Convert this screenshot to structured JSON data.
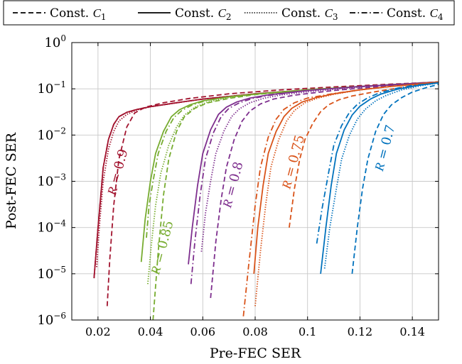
{
  "chart_data": {
    "type": "line",
    "xlabel": "Pre-FEC SER",
    "ylabel": "Post-FEC SER",
    "xlim": [
      0.01,
      0.15
    ],
    "ylim": [
      1e-06,
      1
    ],
    "yscale": "log",
    "grid": true,
    "legend_position": "top",
    "x_ticks": [
      {
        "v": 0.02,
        "label": "0.02"
      },
      {
        "v": 0.04,
        "label": "0.04"
      },
      {
        "v": 0.06,
        "label": "0.06"
      },
      {
        "v": 0.08,
        "label": "0.08"
      },
      {
        "v": 0.1,
        "label": "0.1"
      },
      {
        "v": 0.12,
        "label": "0.12"
      },
      {
        "v": 0.14,
        "label": "0.14"
      }
    ],
    "y_ticks": [
      {
        "v": 1,
        "exp": "0"
      },
      {
        "v": 0.1,
        "exp": "−1"
      },
      {
        "v": 0.01,
        "exp": "−2"
      },
      {
        "v": 0.001,
        "exp": "−3"
      },
      {
        "v": 0.0001,
        "exp": "−4"
      },
      {
        "v": 1e-05,
        "exp": "−5"
      },
      {
        "v": 1e-06,
        "exp": "−6"
      }
    ],
    "y_tick_base": "10",
    "legend": [
      {
        "key": "C1",
        "prefix": "Const. ",
        "sym": "C",
        "sub": "1",
        "dash": "dashed"
      },
      {
        "key": "C2",
        "prefix": "Const. ",
        "sym": "C",
        "sub": "2",
        "dash": "solid"
      },
      {
        "key": "C3",
        "prefix": "Const. ",
        "sym": "C",
        "sub": "3",
        "dash": "dotted"
      },
      {
        "key": "C4",
        "prefix": "Const. ",
        "sym": "C",
        "sub": "4",
        "dash": "dashdot"
      }
    ],
    "groups": [
      {
        "rate": "0.9",
        "color": "#a2142f",
        "label_x": 0.029,
        "label_y": 0.0015,
        "series": {
          "C1": {
            "x": [
              0.0235,
              0.0245,
              0.026,
              0.028,
              0.031,
              0.034,
              0.038,
              0.045,
              0.055,
              0.07,
              0.09,
              0.11,
              0.13,
              0.15
            ],
            "y": [
              2e-06,
              2e-05,
              0.0003,
              0.003,
              0.015,
              0.03,
              0.04,
              0.05,
              0.062,
              0.078,
              0.095,
              0.11,
              0.125,
              0.14
            ]
          },
          "C2": {
            "x": [
              0.0185,
              0.02,
              0.022,
              0.024,
              0.026,
              0.028,
              0.031,
              0.035,
              0.04,
              0.05,
              0.06,
              0.08,
              0.1,
              0.12,
              0.15
            ],
            "y": [
              8e-06,
              0.0001,
              0.002,
              0.008,
              0.017,
              0.025,
              0.031,
              0.036,
              0.041,
              0.05,
              0.06,
              0.078,
              0.095,
              0.112,
              0.14
            ]
          },
          "C3": {
            "x": [
              0.0195,
              0.0205,
              0.022,
              0.024,
              0.026,
              0.028,
              0.031,
              0.035,
              0.04,
              0.05,
              0.06,
              0.08,
              0.1,
              0.12,
              0.15
            ],
            "y": [
              1.4e-05,
              0.0001,
              0.001,
              0.005,
              0.012,
              0.02,
              0.028,
              0.035,
              0.041,
              0.05,
              0.06,
              0.078,
              0.095,
              0.112,
              0.14
            ]
          },
          "C4": {
            "x": [
              0.0185,
              0.02,
              0.022,
              0.024,
              0.026,
              0.028,
              0.031,
              0.035,
              0.04,
              0.05,
              0.06,
              0.08,
              0.1,
              0.12,
              0.15
            ],
            "y": [
              8e-06,
              0.0001,
              0.002,
              0.008,
              0.017,
              0.025,
              0.031,
              0.036,
              0.041,
              0.05,
              0.06,
              0.078,
              0.095,
              0.112,
              0.14
            ]
          }
        }
      },
      {
        "rate": "0.85",
        "color": "#77ac30",
        "label_x": 0.046,
        "label_y": 3.5e-05,
        "series": {
          "C1": {
            "x": [
              0.041,
              0.043,
              0.045,
              0.047,
              0.05,
              0.053,
              0.057,
              0.062,
              0.07,
              0.08,
              0.1,
              0.12,
              0.15
            ],
            "y": [
              1e-06,
              3e-05,
              0.0005,
              0.003,
              0.012,
              0.025,
              0.038,
              0.05,
              0.062,
              0.075,
              0.095,
              0.112,
              0.14
            ]
          },
          "C2": {
            "x": [
              0.0365,
              0.038,
              0.04,
              0.042,
              0.045,
              0.048,
              0.051,
              0.055,
              0.06,
              0.07,
              0.08,
              0.1,
              0.12,
              0.15
            ],
            "y": [
              1.8e-05,
              0.00015,
              0.001,
              0.004,
              0.012,
              0.025,
              0.035,
              0.045,
              0.055,
              0.067,
              0.077,
              0.095,
              0.112,
              0.14
            ]
          },
          "C3": {
            "x": [
              0.039,
              0.0405,
              0.042,
              0.044,
              0.047,
              0.05,
              0.053,
              0.057,
              0.062,
              0.07,
              0.08,
              0.1,
              0.12,
              0.15
            ],
            "y": [
              6e-06,
              5e-05,
              0.0003,
              0.0015,
              0.006,
              0.015,
              0.027,
              0.04,
              0.052,
              0.065,
              0.076,
              0.095,
              0.112,
              0.14
            ]
          },
          "C4": {
            "x": [
              0.0385,
              0.0395,
              0.041,
              0.043,
              0.046,
              0.049,
              0.052,
              0.056,
              0.061,
              0.07,
              0.08,
              0.1,
              0.12,
              0.15
            ],
            "y": [
              6e-05,
              0.0003,
              0.001,
              0.004,
              0.012,
              0.024,
              0.034,
              0.045,
              0.055,
              0.067,
              0.077,
              0.095,
              0.112,
              0.14
            ]
          }
        }
      },
      {
        "rate": "0.8",
        "color": "#7e2f8e",
        "label_x": 0.073,
        "label_y": 0.0008,
        "series": {
          "C1": {
            "x": [
              0.063,
              0.065,
              0.067,
              0.069,
              0.072,
              0.075,
              0.078,
              0.082,
              0.087,
              0.095,
              0.11,
              0.13,
              0.15
            ],
            "y": [
              3e-06,
              5e-05,
              0.0004,
              0.002,
              0.008,
              0.02,
              0.033,
              0.047,
              0.06,
              0.073,
              0.092,
              0.115,
              0.14
            ]
          },
          "C2": {
            "x": [
              0.0545,
              0.056,
              0.058,
              0.06,
              0.063,
              0.066,
              0.069,
              0.073,
              0.078,
              0.085,
              0.1,
              0.12,
              0.15
            ],
            "y": [
              1.6e-05,
              0.0001,
              0.0008,
              0.004,
              0.013,
              0.028,
              0.04,
              0.052,
              0.063,
              0.074,
              0.092,
              0.112,
              0.14
            ]
          },
          "C3": {
            "x": [
              0.0595,
              0.061,
              0.063,
              0.065,
              0.068,
              0.071,
              0.074,
              0.078,
              0.083,
              0.09,
              0.1,
              0.12,
              0.15
            ],
            "y": [
              3e-05,
              0.0002,
              0.001,
              0.004,
              0.012,
              0.025,
              0.037,
              0.05,
              0.062,
              0.074,
              0.086,
              0.11,
              0.14
            ]
          },
          "C4": {
            "x": [
              0.0555,
              0.057,
              0.059,
              0.061,
              0.064,
              0.067,
              0.07,
              0.074,
              0.079,
              0.085,
              0.1,
              0.12,
              0.15
            ],
            "y": [
              6e-06,
              5e-05,
              0.0005,
              0.003,
              0.011,
              0.025,
              0.038,
              0.05,
              0.062,
              0.072,
              0.092,
              0.112,
              0.14
            ]
          }
        }
      },
      {
        "rate": "0.75",
        "color": "#d95319",
        "label_x": 0.096,
        "label_y": 0.0025,
        "series": {
          "C1": {
            "x": [
              0.093,
              0.095,
              0.097,
              0.099,
              0.102,
              0.105,
              0.108,
              0.112,
              0.117,
              0.125,
              0.135,
              0.15
            ],
            "y": [
              0.0001,
              0.0007,
              0.003,
              0.008,
              0.018,
              0.032,
              0.045,
              0.058,
              0.07,
              0.085,
              0.105,
              0.14
            ]
          },
          "C2": {
            "x": [
              0.0795,
              0.081,
              0.083,
              0.085,
              0.088,
              0.091,
              0.094,
              0.098,
              0.103,
              0.11,
              0.12,
              0.13,
              0.15
            ],
            "y": [
              1e-05,
              0.0001,
              0.0008,
              0.004,
              0.012,
              0.025,
              0.038,
              0.052,
              0.064,
              0.078,
              0.095,
              0.11,
              0.14
            ]
          },
          "C3": {
            "x": [
              0.08,
              0.082,
              0.084,
              0.086,
              0.089,
              0.092,
              0.095,
              0.099,
              0.104,
              0.11,
              0.12,
              0.13,
              0.15
            ],
            "y": [
              2e-06,
              3e-05,
              0.0003,
              0.002,
              0.008,
              0.02,
              0.034,
              0.05,
              0.063,
              0.076,
              0.095,
              0.11,
              0.14
            ]
          },
          "C4": {
            "x": [
              0.0755,
              0.0775,
              0.08,
              0.082,
              0.085,
              0.088,
              0.091,
              0.095,
              0.1,
              0.11,
              0.12,
              0.13,
              0.15
            ],
            "y": [
              1.2e-06,
              1.5e-05,
              0.0003,
              0.002,
              0.009,
              0.022,
              0.036,
              0.05,
              0.063,
              0.079,
              0.095,
              0.11,
              0.14
            ]
          }
        }
      },
      {
        "rate": "0.7",
        "color": "#0072bd",
        "label_x": 0.131,
        "label_y": 0.005,
        "series": {
          "C1": {
            "x": [
              0.117,
              0.119,
              0.121,
              0.123,
              0.126,
              0.129,
              0.132,
              0.136,
              0.14,
              0.145,
              0.15
            ],
            "y": [
              1e-05,
              0.0001,
              0.0007,
              0.003,
              0.012,
              0.028,
              0.045,
              0.065,
              0.085,
              0.105,
              0.125
            ]
          },
          "C2": {
            "x": [
              0.105,
              0.107,
              0.109,
              0.111,
              0.114,
              0.117,
              0.12,
              0.124,
              0.128,
              0.134,
              0.142,
              0.15
            ],
            "y": [
              1e-05,
              0.0001,
              0.0008,
              0.004,
              0.013,
              0.027,
              0.042,
              0.06,
              0.077,
              0.097,
              0.118,
              0.135
            ]
          },
          "C3": {
            "x": [
              0.1065,
              0.1085,
              0.111,
              0.113,
              0.116,
              0.119,
              0.122,
              0.126,
              0.13,
              0.136,
              0.143,
              0.15
            ],
            "y": [
              1.3e-05,
              0.0001,
              0.0007,
              0.003,
              0.01,
              0.022,
              0.036,
              0.055,
              0.072,
              0.095,
              0.116,
              0.135
            ]
          },
          "C4": {
            "x": [
              0.1035,
              0.1055,
              0.108,
              0.11,
              0.113,
              0.116,
              0.119,
              0.123,
              0.127,
              0.133,
              0.14,
              0.15
            ],
            "y": [
              4.5e-05,
              0.00025,
              0.0015,
              0.006,
              0.016,
              0.031,
              0.046,
              0.064,
              0.08,
              0.1,
              0.118,
              0.135
            ]
          }
        }
      }
    ]
  }
}
